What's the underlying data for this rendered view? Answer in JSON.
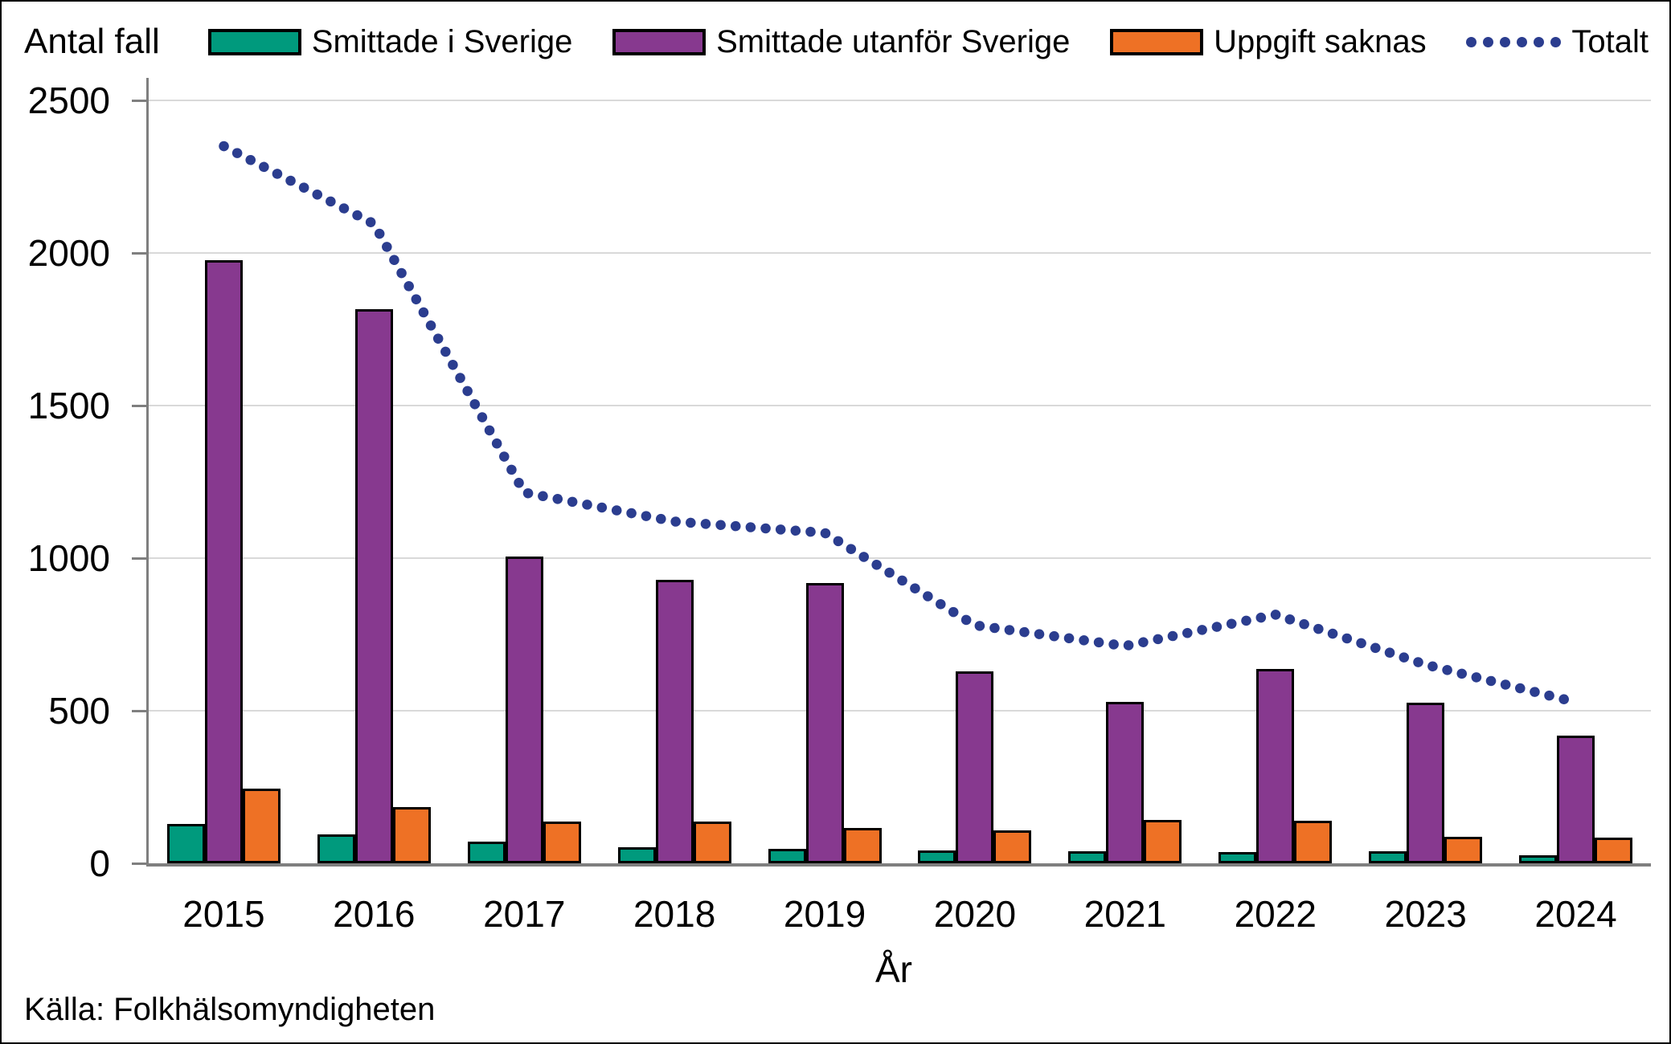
{
  "figure": {
    "title": "Antal fall",
    "xlabel": "År",
    "source": "Källa: Folkhälsomyndigheten"
  },
  "chart_data": {
    "type": "bar",
    "title": "Antal fall",
    "xlabel": "År",
    "ylabel": "Antal fall",
    "source": "Källa: Folkhälsomyndigheten",
    "categories": [
      "2015",
      "2016",
      "2017",
      "2018",
      "2019",
      "2020",
      "2021",
      "2022",
      "2023",
      "2024"
    ],
    "series": [
      {
        "name": "Smittade i Sverige",
        "type": "bar",
        "color": "#009A7D",
        "values": [
          130,
          95,
          72,
          52,
          48,
          43,
          40,
          38,
          40,
          26
        ]
      },
      {
        "name": "Smittade utanför Sverige",
        "type": "bar",
        "color": "#87398F",
        "values": [
          1975,
          1815,
          1005,
          930,
          918,
          630,
          530,
          637,
          525,
          418
        ]
      },
      {
        "name": "Uppgift saknas",
        "type": "bar",
        "color": "#EE7125",
        "values": [
          245,
          185,
          138,
          138,
          117,
          107,
          142,
          140,
          86,
          84
        ]
      },
      {
        "name": "Totalt",
        "type": "dotted-line",
        "color": "#2B3D8F",
        "values": [
          2350,
          2095,
          1215,
          1120,
          1083,
          780,
          712,
          815,
          651,
          528
        ]
      }
    ],
    "ylim": [
      0,
      2500
    ],
    "yticks": [
      0,
      500,
      1000,
      1500,
      2000,
      2500
    ],
    "grid": "horizontal",
    "legend_position": "top"
  },
  "style": {
    "grid_color": "#D9D9D9",
    "axis_color": "#7F7F7F",
    "text_color": "#000000",
    "background": "#FFFFFF"
  }
}
